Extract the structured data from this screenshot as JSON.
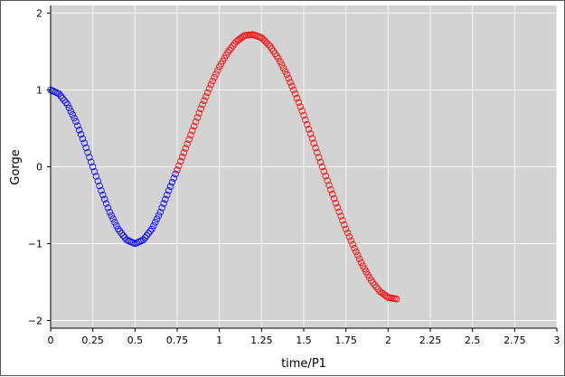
{
  "chart_data": {
    "type": "scatter",
    "xlabel": "time/P1",
    "ylabel": "Gorge",
    "xlim": [
      0,
      3
    ],
    "ylim": [
      -2.1,
      2.1
    ],
    "x_ticks": [
      0,
      0.25,
      0.5,
      0.75,
      1,
      1.25,
      1.5,
      1.75,
      2,
      2.25,
      2.5,
      2.75,
      3
    ],
    "x_tick_labels": [
      "0",
      "0.25",
      "0.5",
      "0.75",
      "1",
      "1.25",
      "1.5",
      "1.75",
      "2",
      "2.25",
      "2.5",
      "2.75",
      "3"
    ],
    "y_ticks": [
      -2,
      -1,
      0,
      1,
      2
    ],
    "y_tick_labels": [
      "−2",
      "−1",
      "0",
      "1",
      "2"
    ],
    "grid": true,
    "background_color": "#d3d3d3",
    "marker": "open-circle",
    "series": [
      {
        "color": "#0000ff",
        "x": [
          0,
          0.05,
          0.1,
          0.15,
          0.2,
          0.25,
          0.3,
          0.35,
          0.4,
          0.45,
          0.5,
          0.55,
          0.6,
          0.65,
          0.7,
          0.75
        ],
        "y": [
          1,
          0.95,
          0.81,
          0.59,
          0.31,
          0.0,
          -0.31,
          -0.59,
          -0.81,
          -0.95,
          -1.0,
          -0.95,
          -0.81,
          -0.59,
          -0.31,
          -0.04
        ]
      },
      {
        "color": "#ff0000",
        "x": [
          0.75,
          0.8,
          0.85,
          0.9,
          0.95,
          1.0,
          1.05,
          1.1,
          1.15,
          1.2,
          1.25,
          1.3,
          1.35,
          1.4,
          1.45,
          1.5,
          1.55,
          1.6,
          1.65,
          1.7,
          1.75,
          1.8,
          1.85,
          1.9,
          1.95,
          2.0,
          2.05
        ],
        "y": [
          -0.04,
          0.24,
          0.53,
          0.81,
          1.07,
          1.3,
          1.49,
          1.63,
          1.71,
          1.72,
          1.68,
          1.57,
          1.41,
          1.2,
          0.95,
          0.67,
          0.37,
          0.06,
          -0.24,
          -0.53,
          -0.81,
          -1.06,
          -1.29,
          -1.48,
          -1.62,
          -1.7,
          -1.72
        ]
      }
    ]
  }
}
